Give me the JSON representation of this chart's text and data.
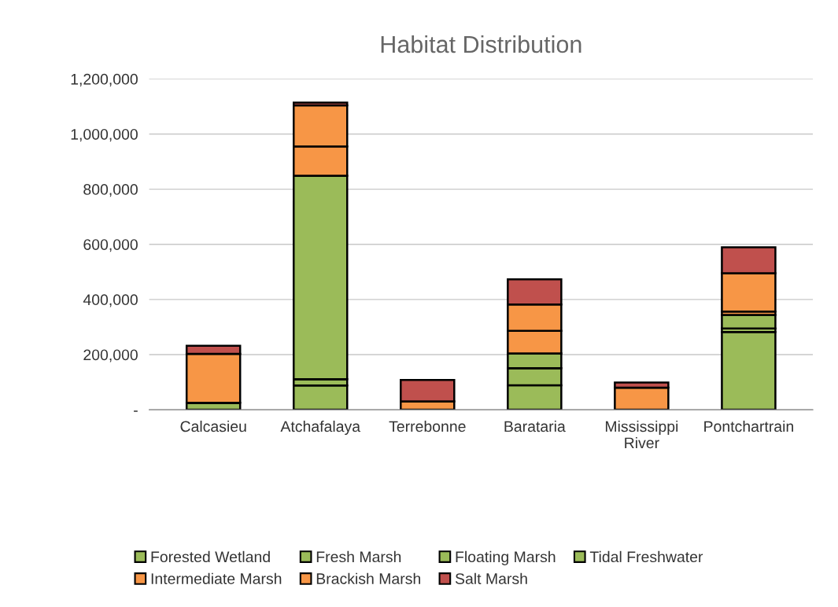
{
  "chart_data": {
    "type": "bar",
    "title": "Habitat Distribution",
    "stacked": true,
    "categories": [
      "Calcasieu",
      "Atchafalaya",
      "Terrebonne",
      "Barataria",
      "Mississippi\nRiver",
      "Pontchartrain"
    ],
    "series": [
      {
        "name": "Forested Wetland",
        "color": "#9bbb59",
        "values": [
          25000,
          88000,
          null,
          89000,
          null,
          282000
        ]
      },
      {
        "name": "Fresh Marsh",
        "color": "#9bbb59",
        "values": [
          null,
          23000,
          null,
          62000,
          null,
          13000
        ]
      },
      {
        "name": "Floating Marsh",
        "color": "#9bbb59",
        "values": [
          0,
          null,
          0,
          0,
          0,
          null
        ]
      },
      {
        "name": "Tidal Freshwater",
        "color": "#9bbb59",
        "values": [
          null,
          738000,
          0,
          53000,
          0,
          49000
        ]
      },
      {
        "name": "Intermediate Marsh",
        "color": "#f79646",
        "values": [
          178000,
          106000,
          null,
          82000,
          80000,
          12000
        ]
      },
      {
        "name": "Brackish Marsh",
        "color": "#f79646",
        "values": [
          0,
          149000,
          30000,
          96000,
          null,
          139000
        ]
      },
      {
        "name": "Salt Marsh",
        "color": "#c0504d",
        "values": [
          29000,
          10000,
          78000,
          91000,
          19000,
          94000
        ]
      }
    ],
    "ylim": [
      0,
      1200000
    ],
    "yticks": [
      {
        "value": 0,
        "label": "-"
      },
      {
        "value": 200000,
        "label": "200,000"
      },
      {
        "value": 400000,
        "label": "400,000"
      },
      {
        "value": 600000,
        "label": "600,000"
      },
      {
        "value": 800000,
        "label": "800,000"
      },
      {
        "value": 1000000,
        "label": "1,000,000"
      },
      {
        "value": 1200000,
        "label": "1,200,000"
      }
    ],
    "grid": "y",
    "legend": "bottom"
  }
}
